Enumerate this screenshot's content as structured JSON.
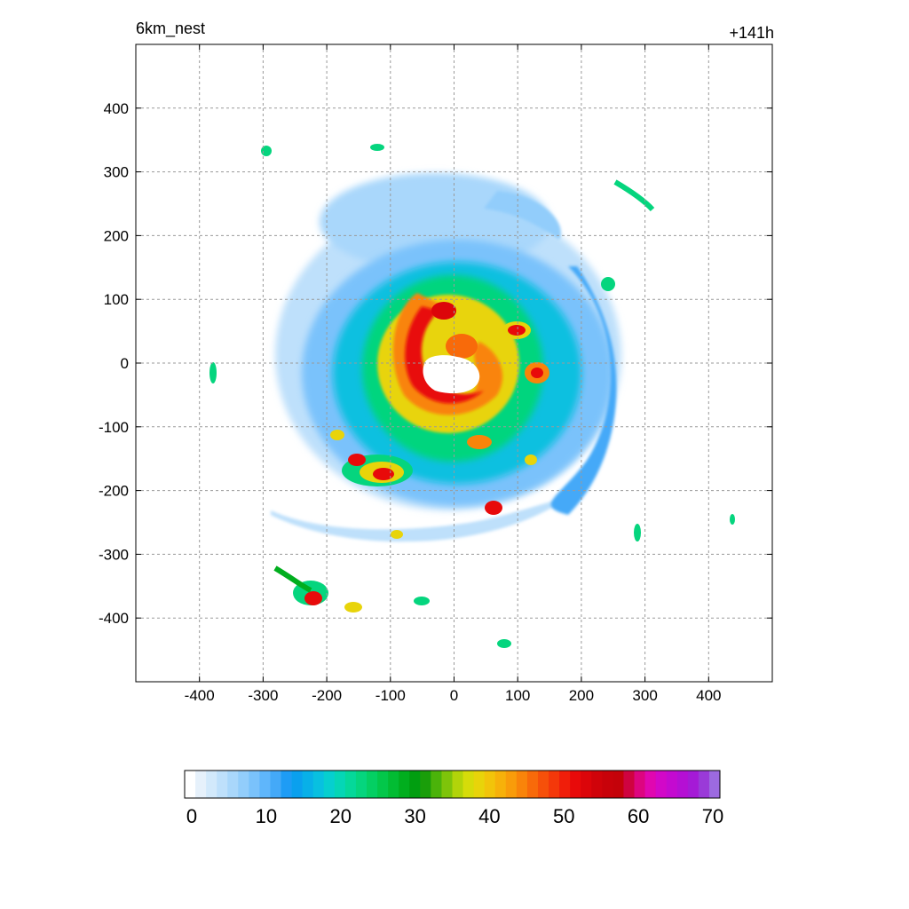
{
  "chart_data": {
    "type": "heatmap",
    "title_left": "6km_nest",
    "title_right": "+141h",
    "xlabel": "",
    "ylabel": "",
    "xlim": [
      -500,
      500
    ],
    "ylim": [
      -500,
      500
    ],
    "x_ticks": [
      -400,
      -300,
      -200,
      -100,
      0,
      100,
      200,
      300,
      400
    ],
    "y_ticks": [
      400,
      300,
      200,
      100,
      0,
      -100,
      -200,
      -300,
      -400
    ],
    "grid": true,
    "colorbar": {
      "min": 0,
      "max": 70,
      "ticks": [
        0,
        10,
        20,
        30,
        40,
        50,
        60,
        70
      ],
      "colors": [
        "#ffffff",
        "#e6f1fb",
        "#d2e9fb",
        "#bee0fb",
        "#a9d7fb",
        "#92cdfb",
        "#7ac2fb",
        "#5fb6fb",
        "#44a9f8",
        "#1e9cf5",
        "#0aa0ee",
        "#08b0e8",
        "#08c0e0",
        "#06cfcf",
        "#05d6b6",
        "#05d89a",
        "#05d57e",
        "#04cf63",
        "#03c74a",
        "#02bc33",
        "#01ae1e",
        "#019e10",
        "#1a9e0a",
        "#4bb30a",
        "#7ec40a",
        "#b2d40a",
        "#d6dc0a",
        "#e8d40a",
        "#f2c40a",
        "#f7b10a",
        "#f99c0a",
        "#f9840a",
        "#f86a0a",
        "#f6500a",
        "#f4380a",
        "#f01e0a",
        "#e80a0a",
        "#dc050a",
        "#d0030a",
        "#c8020a",
        "#c4020a",
        "#cf0340",
        "#dd0580",
        "#e007b0",
        "#d208c8",
        "#c40ad0",
        "#b50fd4",
        "#a51ad6",
        "#9a3ad8",
        "#9c6ae0"
      ]
    },
    "features": {
      "eye_center": [
        5,
        -15
      ],
      "eye_radius_km": 35,
      "max_value_region": "inner spiral around eye, values ~45-55",
      "outer_bands_values": "5-20 with isolated convective cells 30-55"
    }
  }
}
